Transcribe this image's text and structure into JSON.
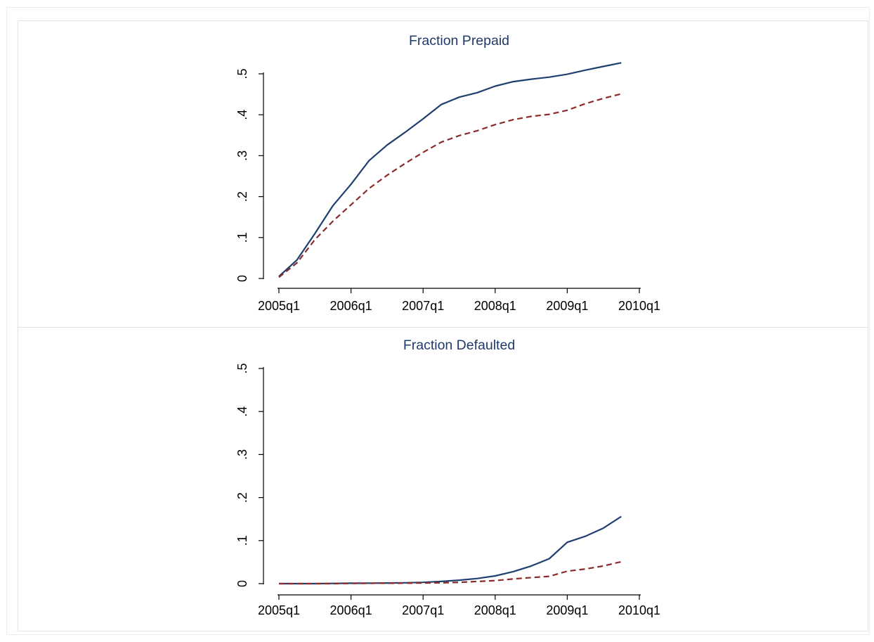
{
  "colors": {
    "series_1": "#1f3f6e",
    "series_2": "#8c2b2b"
  },
  "chart_data": [
    {
      "type": "line",
      "title": "Fraction Prepaid",
      "xlabel": "",
      "ylabel": "",
      "x_ticks": [
        "2005q1",
        "2006q1",
        "2007q1",
        "2008q1",
        "2009q1",
        "2010q1"
      ],
      "y_ticks": [
        "0",
        ".1",
        ".2",
        ".3",
        ".4",
        ".5"
      ],
      "ylim": [
        0,
        0.5
      ],
      "grid": false,
      "legend": "none",
      "x": [
        "2005q1",
        "2005q2",
        "2005q3",
        "2005q4",
        "2006q1",
        "2006q2",
        "2006q3",
        "2006q4",
        "2007q1",
        "2007q2",
        "2007q3",
        "2007q4",
        "2008q1",
        "2008q2",
        "2008q3",
        "2008q4",
        "2009q1",
        "2009q2",
        "2009q3",
        "2009q4"
      ],
      "series": [
        {
          "style": "solid",
          "values": [
            0.005,
            0.045,
            0.11,
            0.178,
            0.23,
            0.288,
            0.326,
            0.357,
            0.39,
            0.425,
            0.443,
            0.454,
            0.47,
            0.481,
            0.487,
            0.492,
            0.499,
            0.509,
            0.518,
            0.527
          ]
        },
        {
          "style": "dashed",
          "values": [
            0.003,
            0.038,
            0.095,
            0.14,
            0.18,
            0.22,
            0.252,
            0.281,
            0.308,
            0.333,
            0.349,
            0.361,
            0.376,
            0.388,
            0.396,
            0.401,
            0.411,
            0.427,
            0.44,
            0.451
          ]
        }
      ]
    },
    {
      "type": "line",
      "title": "Fraction Defaulted",
      "xlabel": "",
      "ylabel": "",
      "x_ticks": [
        "2005q1",
        "2006q1",
        "2007q1",
        "2008q1",
        "2009q1",
        "2010q1"
      ],
      "y_ticks": [
        "0",
        ".1",
        ".2",
        ".3",
        ".4",
        ".5"
      ],
      "ylim": [
        0,
        0.5
      ],
      "grid": false,
      "legend": "none",
      "x": [
        "2005q1",
        "2005q2",
        "2005q3",
        "2005q4",
        "2006q1",
        "2006q2",
        "2006q3",
        "2006q4",
        "2007q1",
        "2007q2",
        "2007q3",
        "2007q4",
        "2008q1",
        "2008q2",
        "2008q3",
        "2008q4",
        "2009q1",
        "2009q2",
        "2009q3",
        "2009q4"
      ],
      "series": [
        {
          "style": "solid",
          "values": [
            0.0,
            0.0,
            0.0,
            0.0005,
            0.001,
            0.0012,
            0.0015,
            0.002,
            0.003,
            0.005,
            0.008,
            0.012,
            0.018,
            0.028,
            0.041,
            0.058,
            0.096,
            0.11,
            0.129,
            0.156
          ]
        },
        {
          "style": "dashed",
          "values": [
            0.0,
            0.0,
            0.0,
            0.0,
            0.0005,
            0.0008,
            0.001,
            0.0012,
            0.0015,
            0.002,
            0.003,
            0.005,
            0.007,
            0.011,
            0.014,
            0.017,
            0.029,
            0.034,
            0.041,
            0.051
          ]
        }
      ]
    }
  ]
}
